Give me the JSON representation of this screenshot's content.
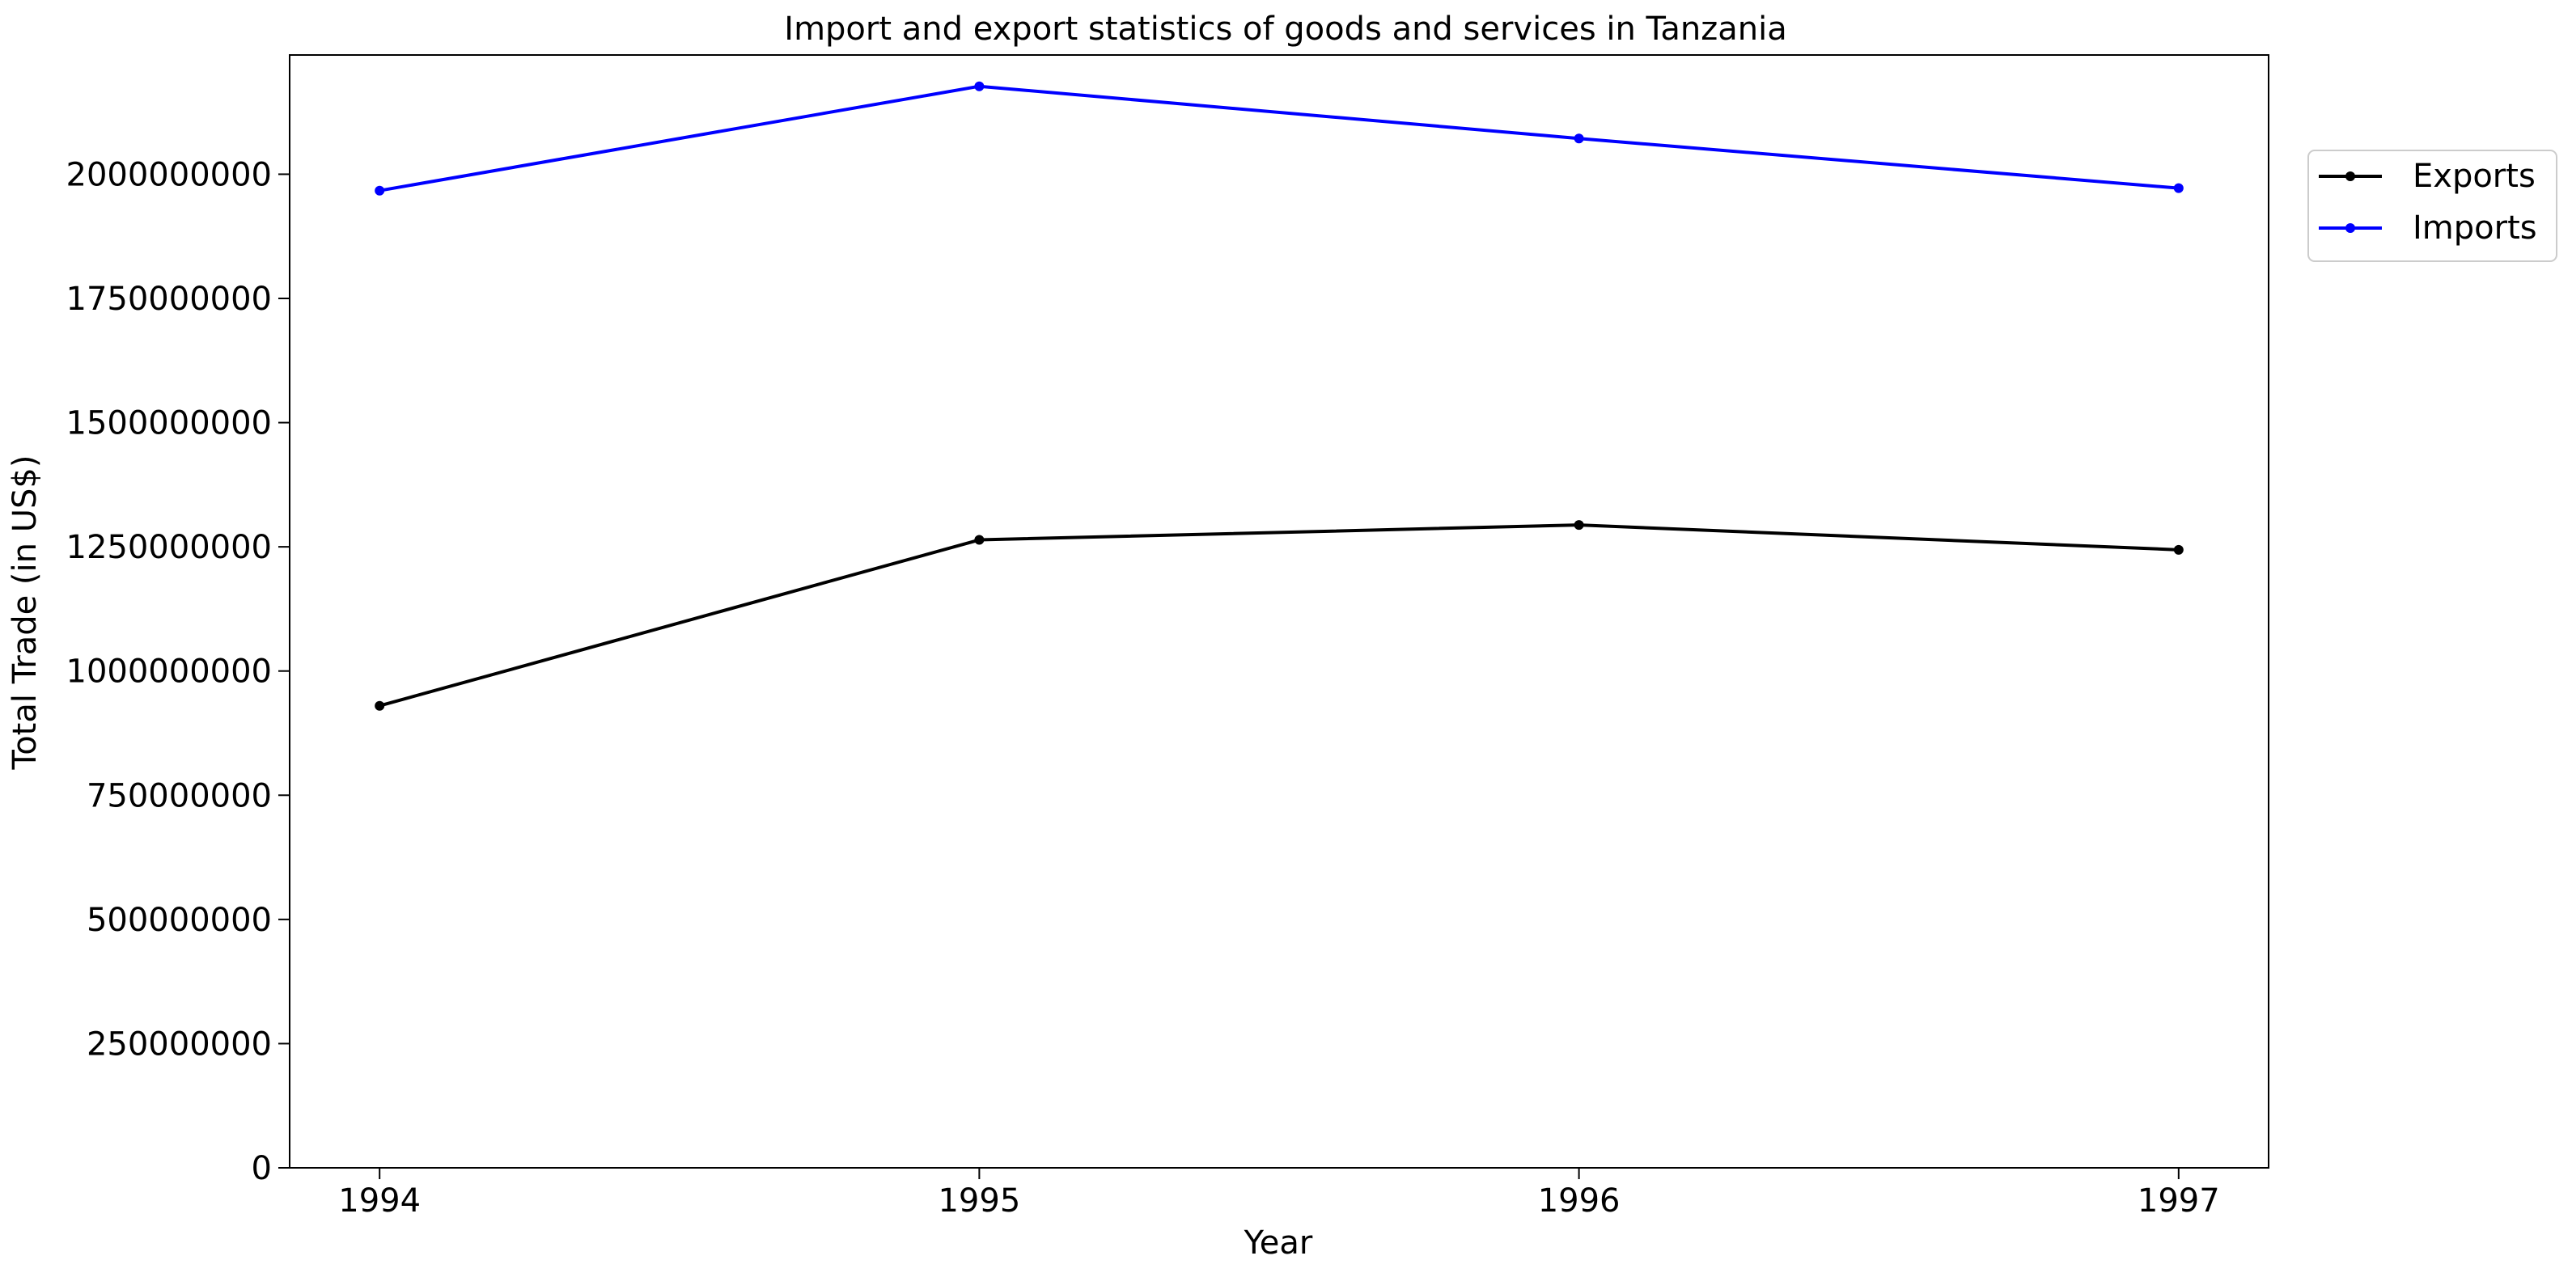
{
  "chart_data": {
    "type": "line",
    "title": "Import and export statistics of goods and services in Tanzania",
    "xlabel": "Year",
    "ylabel": "Total Trade (in US$)",
    "categories": [
      "1994",
      "1995",
      "1996",
      "1997"
    ],
    "x": [
      1994,
      1995,
      1996,
      1997
    ],
    "xlim": [
      1993.85,
      1997.15
    ],
    "ylim": [
      0,
      2240000000
    ],
    "yticks": [
      0,
      250000000,
      500000000,
      750000000,
      1000000000,
      1250000000,
      1500000000,
      1750000000,
      2000000000
    ],
    "ytick_labels": [
      "0",
      "250000000",
      "500000000",
      "750000000",
      "1000000000",
      "1250000000",
      "1500000000",
      "1750000000",
      "2000000000"
    ],
    "series": [
      {
        "name": "Exports",
        "color": "#000000",
        "values": [
          930000000,
          1264000000,
          1294000000,
          1244000000
        ]
      },
      {
        "name": "Imports",
        "color": "#0000ff",
        "values": [
          1967000000,
          2177000000,
          2072000000,
          1972000000
        ]
      }
    ],
    "grid": false,
    "legend_position": "right-top"
  }
}
